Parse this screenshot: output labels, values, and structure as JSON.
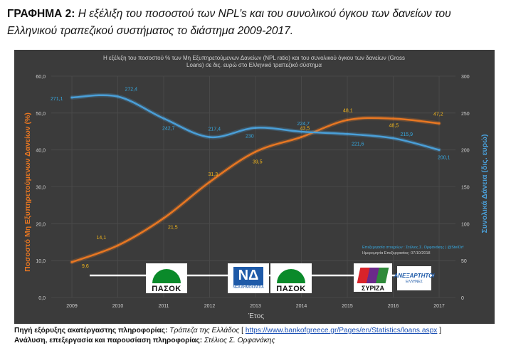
{
  "caption": {
    "heading": "ΓΡΑΦΗΜΑ 2:",
    "text": "Η εξέλιξη του ποσοστού των NPL’s και του συνολικού όγκου των δανείων του Ελληνικού τραπεζικού συστήματος το διάστημα 2009-2017."
  },
  "footer": {
    "source_label": "Πηγή εξόρυξης ακατέργαστης πληροφορίας:",
    "source_value": "Τράπεζα της Ελλάδος",
    "source_link": "https://www.bankofgreece.gr/Pages/en/Statistics/loans.aspx",
    "analysis_label": "Ανάλυση, επεξεργασία και παρουσίαση πληροφορίας:",
    "analysis_value": "Στέλιος Σ. Ορφανάκης"
  },
  "credit": {
    "line1": "Επεξεργασία στοιχείων : Στέλιος Σ. Ορφανάκης | @StelOrf",
    "line2": "Ημερομηνία Επεξεργασίας: 07/10/2018"
  },
  "logos": {
    "pasok": "ΠΑΣΟΚ",
    "nd_mark": "ΝΔ",
    "nd_text": "ΝΕΑ ΔΗΜΟΚΡΑΤΙΑ",
    "syriza": "ΣΥΡΙΖΑ",
    "anel": "ΑΝΕΞΑΡΤΗΤΟΙ",
    "anel_sub": "ΕΛΛΗΝΕΣ"
  },
  "colors": {
    "background": "#3b3b3b",
    "npl": "#e87722",
    "loans": "#4a9fd8",
    "npl_label": "#f2b51b",
    "loans_label": "#36a9e1",
    "grid": "#4c4c4c",
    "text": "#d0d0d0"
  },
  "chart_data": {
    "type": "line",
    "title": "Η εξέλιξη του ποσοστού % των Μη Εξυπηρετούμενων Δανείων (NPL ratio) και του συνολικού όγκου των δανείων (Gross Loans) σε δις. ευρώ στο Ελληνικό τραπεζικό σύστημα",
    "xlabel": "Έτος",
    "ylabel": "Ποσοστό Μη Εξυπηρετούμενων Δανείων (%)",
    "y2label": "Συνολικά Δάνεια (δις. ευρώ)",
    "categories": [
      "2009",
      "2010",
      "2011",
      "2012",
      "2013",
      "2014",
      "2015",
      "2016",
      "2017"
    ],
    "ylim": [
      0,
      60
    ],
    "y2lim": [
      0,
      300
    ],
    "yticks": [
      "0,0",
      "10,0",
      "20,0",
      "30,0",
      "40,0",
      "50,0",
      "60,0"
    ],
    "y2ticks": [
      "0",
      "50",
      "100",
      "150",
      "200",
      "250",
      "300"
    ],
    "grid": true,
    "series": [
      {
        "key": "npl",
        "axis": "left",
        "values": [
          9.6,
          14.1,
          21.5,
          31.3,
          39.5,
          43.5,
          48.1,
          48.5,
          47.2
        ],
        "labels": [
          "9,6",
          "14,1",
          "21,5",
          "31,3",
          "39,5",
          "43,5",
          "48,1",
          "48,5",
          "47,2"
        ]
      },
      {
        "key": "loans",
        "axis": "right",
        "values": [
          271.1,
          272.4,
          242.7,
          217.4,
          230,
          224.7,
          221.6,
          215.9,
          200.1
        ],
        "labels": [
          "271,1",
          "272,4",
          "242,7",
          "217,4",
          "230",
          "224,7",
          "221,6",
          "215,9",
          "200,1"
        ]
      }
    ]
  }
}
